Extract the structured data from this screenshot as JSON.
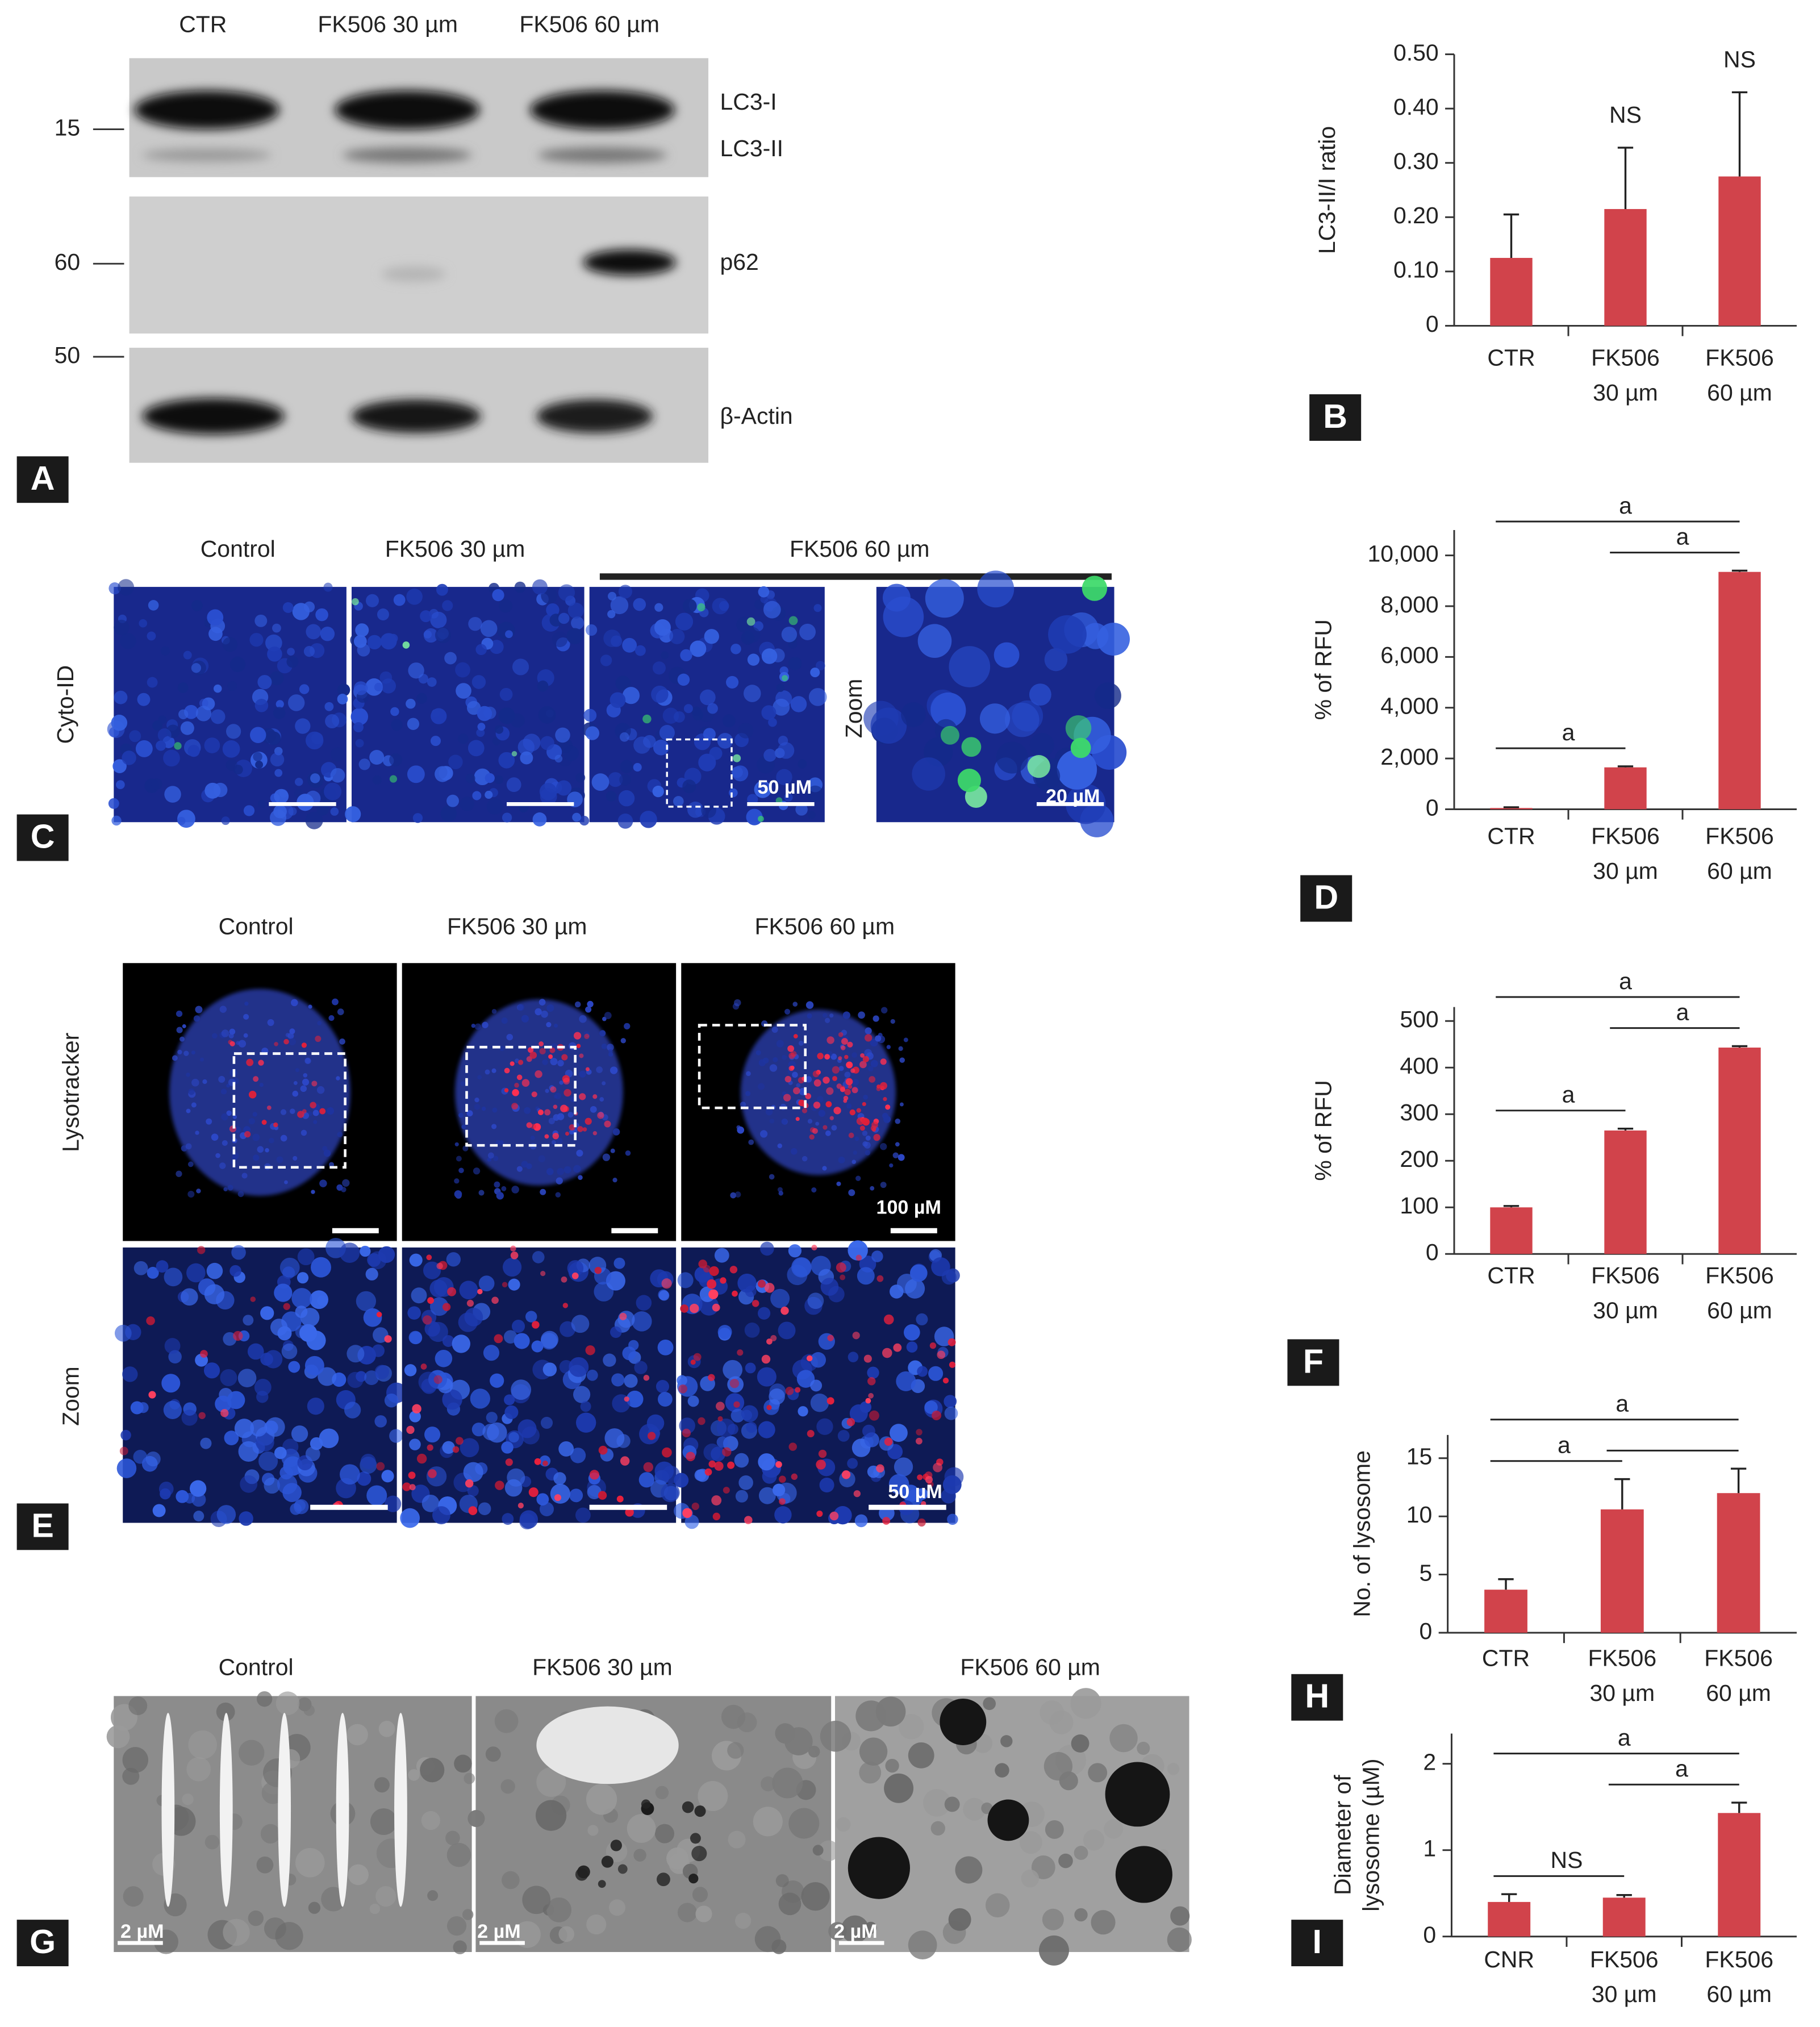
{
  "figure": {
    "panel_letters": [
      "A",
      "B",
      "C",
      "D",
      "E",
      "F",
      "G",
      "H",
      "I"
    ],
    "blot": {
      "lanes": [
        "CTR",
        "FK506 30 µm",
        "FK506 60 µm"
      ],
      "markers": [
        15,
        60,
        50
      ],
      "bands": [
        "LC3-I",
        "LC3-II",
        "p62",
        "β-Actin"
      ]
    },
    "cyto_id": {
      "columns": [
        "Control",
        "FK506 30 µm",
        "FK506 60 µm"
      ],
      "row_label": "Cyto-ID",
      "zoom_label": "Zoom",
      "scale_labels": [
        "50 µM",
        "20 µM"
      ]
    },
    "lysotracker": {
      "columns": [
        "Control",
        "FK506 30 µm",
        "FK506 60 µm"
      ],
      "row_labels": [
        "Lysotracker",
        "Zoom"
      ],
      "scale_labels": [
        "100 µM",
        "50 µM"
      ]
    },
    "tem": {
      "columns": [
        "Control",
        "FK506 30 µm",
        "FK506 60 µm"
      ],
      "scale_labels": [
        "2 µM",
        "2 µM",
        "2 µM"
      ]
    }
  },
  "chart_data": [
    {
      "type": "bar",
      "y_label": "LC3-II/I ratio",
      "categories": [
        [
          "CTR"
        ],
        [
          "FK506",
          "30 µm"
        ],
        [
          "FK506",
          "60 µm"
        ]
      ],
      "values": [
        0.125,
        0.215,
        0.275
      ],
      "errors": [
        0.08,
        0.113,
        0.155
      ],
      "color": "#d1434b",
      "ylim": [
        0,
        0.5
      ],
      "yticks": [
        0,
        {
          "value": 0.1,
          "label": "0.10"
        },
        {
          "value": 0.2,
          "label": "0.20"
        },
        {
          "value": 0.3,
          "label": "0.30"
        },
        {
          "value": 0.4,
          "label": "0.40"
        },
        {
          "value": 0.5,
          "label": "0.50"
        }
      ],
      "annotations": [
        {
          "category": 1,
          "label": "NS"
        },
        {
          "category": 2,
          "label": "NS"
        }
      ]
    },
    {
      "type": "bar",
      "y_label": "% of RFU",
      "categories": [
        [
          "CTR"
        ],
        [
          "FK506",
          "30 µm"
        ],
        [
          "FK506",
          "60 µm"
        ]
      ],
      "values": [
        50,
        1650,
        9350
      ],
      "errors": [
        30,
        40,
        50
      ],
      "color": "#d1434b",
      "ylim": [
        0,
        11000
      ],
      "yticks": [
        0,
        {
          "value": 2000,
          "label": "2,000"
        },
        {
          "value": 4000,
          "label": "4,000"
        },
        {
          "value": 6000,
          "label": "6,000"
        },
        {
          "value": 8000,
          "label": "8,000"
        },
        {
          "value": 10000,
          "label": "10,000"
        }
      ],
      "brackets": [
        {
          "from": 0,
          "to": 1,
          "label": "a"
        },
        {
          "from": 1,
          "to": 2,
          "label": "a"
        },
        {
          "from": 0,
          "to": 2,
          "label": "a"
        }
      ]
    },
    {
      "type": "bar",
      "y_label": "% of RFU",
      "categories": [
        [
          "CTR"
        ],
        [
          "FK506",
          "30 µm"
        ],
        [
          "FK506",
          "60 µm"
        ]
      ],
      "values": [
        100,
        265,
        443
      ],
      "errors": [
        3,
        4,
        3
      ],
      "color": "#d1434b",
      "ylim": [
        0,
        530
      ],
      "yticks": [
        0,
        100,
        200,
        300,
        400,
        500
      ],
      "brackets": [
        {
          "from": 0,
          "to": 1,
          "label": "a"
        },
        {
          "from": 1,
          "to": 2,
          "label": "a"
        },
        {
          "from": 0,
          "to": 2,
          "label": "a"
        }
      ]
    },
    {
      "type": "bar",
      "y_label": "No. of lysosome",
      "categories": [
        [
          "CTR"
        ],
        [
          "FK506",
          "30 µm"
        ],
        [
          "FK506",
          "60 µm"
        ]
      ],
      "values": [
        3.7,
        10.6,
        12.0
      ],
      "errors": [
        0.9,
        2.6,
        2.1
      ],
      "color": "#d1434b",
      "ylim": [
        0,
        17
      ],
      "yticks": [
        0,
        5,
        10,
        15
      ],
      "brackets": [
        {
          "from": 0,
          "to": 1,
          "label": "a"
        },
        {
          "from": 1,
          "to": 2
        },
        {
          "from": 0,
          "to": 2,
          "label": "a"
        }
      ]
    },
    {
      "type": "bar",
      "y_label": [
        "Diameter of",
        "lysosome (µM)"
      ],
      "categories": [
        [
          "CNR"
        ],
        [
          "FK506",
          "30 µm"
        ],
        [
          "FK506",
          "60 µm"
        ]
      ],
      "values": [
        0.4,
        0.45,
        1.43
      ],
      "errors": [
        0.09,
        0.03,
        0.12
      ],
      "color": "#d1434b",
      "ylim": [
        0,
        2.35
      ],
      "yticks": [
        0,
        1,
        2
      ],
      "brackets": [
        {
          "from": 0,
          "to": 1,
          "label": "NS"
        },
        {
          "from": 1,
          "to": 2,
          "label": "a"
        },
        {
          "from": 0,
          "to": 2,
          "label": "a"
        }
      ]
    }
  ]
}
